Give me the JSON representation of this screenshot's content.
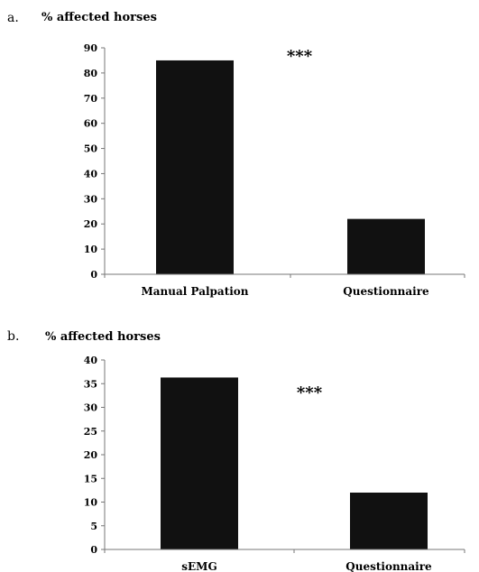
{
  "chart_data": [
    {
      "type": "bar",
      "panel_label": "a.",
      "ylabel": "% affected horses",
      "categories": [
        "Manual Palpation",
        "Questionnaire"
      ],
      "values": [
        85,
        22
      ],
      "ylim": [
        0,
        90
      ],
      "yticks": [
        0,
        10,
        20,
        30,
        40,
        50,
        60,
        70,
        80,
        90
      ],
      "annotation": "***",
      "bar_color": "#111111",
      "grid": false,
      "legend": "none"
    },
    {
      "type": "bar",
      "panel_label": "b.",
      "ylabel": "% affected horses",
      "categories": [
        "sEMG",
        "Questionnaire"
      ],
      "values": [
        36.3,
        12
      ],
      "ylim": [
        0,
        40
      ],
      "yticks": [
        0,
        5,
        10,
        15,
        20,
        25,
        30,
        35,
        40
      ],
      "annotation": "***",
      "bar_color": "#111111",
      "grid": false,
      "legend": "none"
    }
  ]
}
